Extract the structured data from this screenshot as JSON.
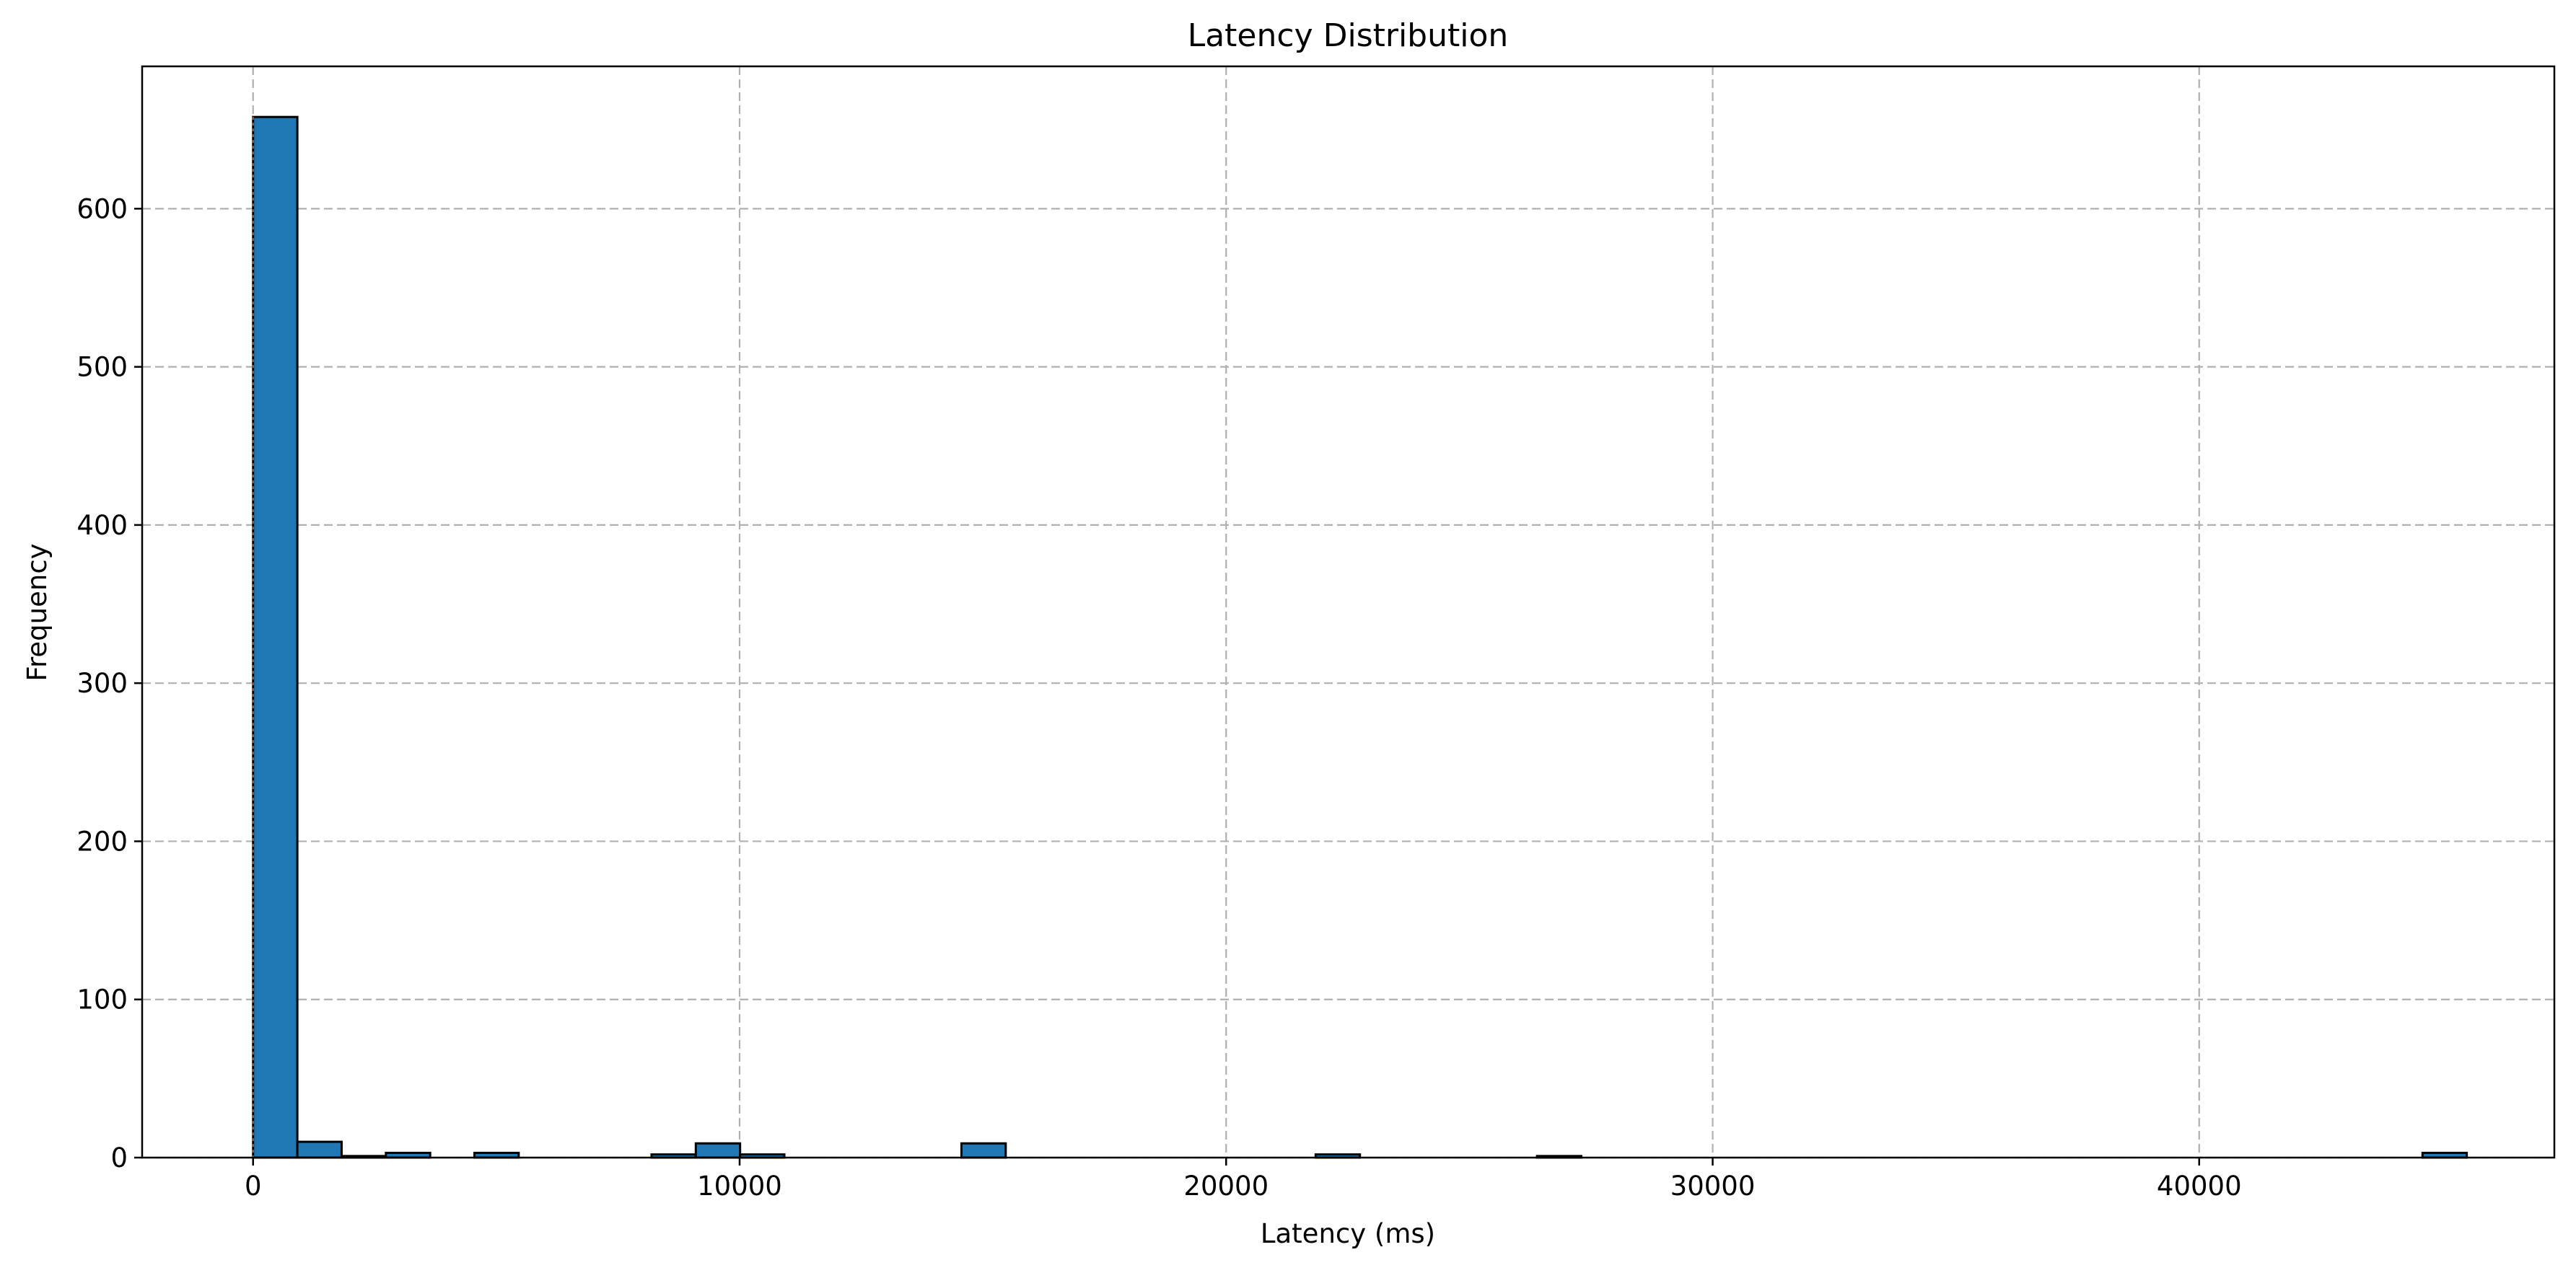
{
  "chart_data": {
    "type": "bar",
    "title": "Latency Distribution",
    "xlabel": "Latency (ms)",
    "ylabel": "Frequency",
    "xlim": [
      -2280,
      47300
    ],
    "ylim": [
      0,
      690
    ],
    "xticks": [
      0,
      10000,
      20000,
      30000,
      40000
    ],
    "yticks": [
      0,
      100,
      200,
      300,
      400,
      500,
      600
    ],
    "bins": [
      {
        "x0": 0,
        "x1": 910,
        "count": 658
      },
      {
        "x0": 910,
        "x1": 1820,
        "count": 10
      },
      {
        "x0": 1820,
        "x1": 2730,
        "count": 1
      },
      {
        "x0": 2730,
        "x1": 3640,
        "count": 3
      },
      {
        "x0": 4550,
        "x1": 5460,
        "count": 3
      },
      {
        "x0": 8190,
        "x1": 9100,
        "count": 2
      },
      {
        "x0": 9100,
        "x1": 10010,
        "count": 9
      },
      {
        "x0": 10010,
        "x1": 10920,
        "count": 2
      },
      {
        "x0": 14560,
        "x1": 15470,
        "count": 9
      },
      {
        "x0": 21840,
        "x1": 22750,
        "count": 2
      },
      {
        "x0": 26390,
        "x1": 27300,
        "count": 1
      },
      {
        "x0": 44590,
        "x1": 45500,
        "count": 3
      }
    ],
    "bar_color": "#1f77b4",
    "edge_color": "#000000",
    "grid": true,
    "grid_style": "dashed",
    "marker_line_color": "#8a5a3a"
  }
}
